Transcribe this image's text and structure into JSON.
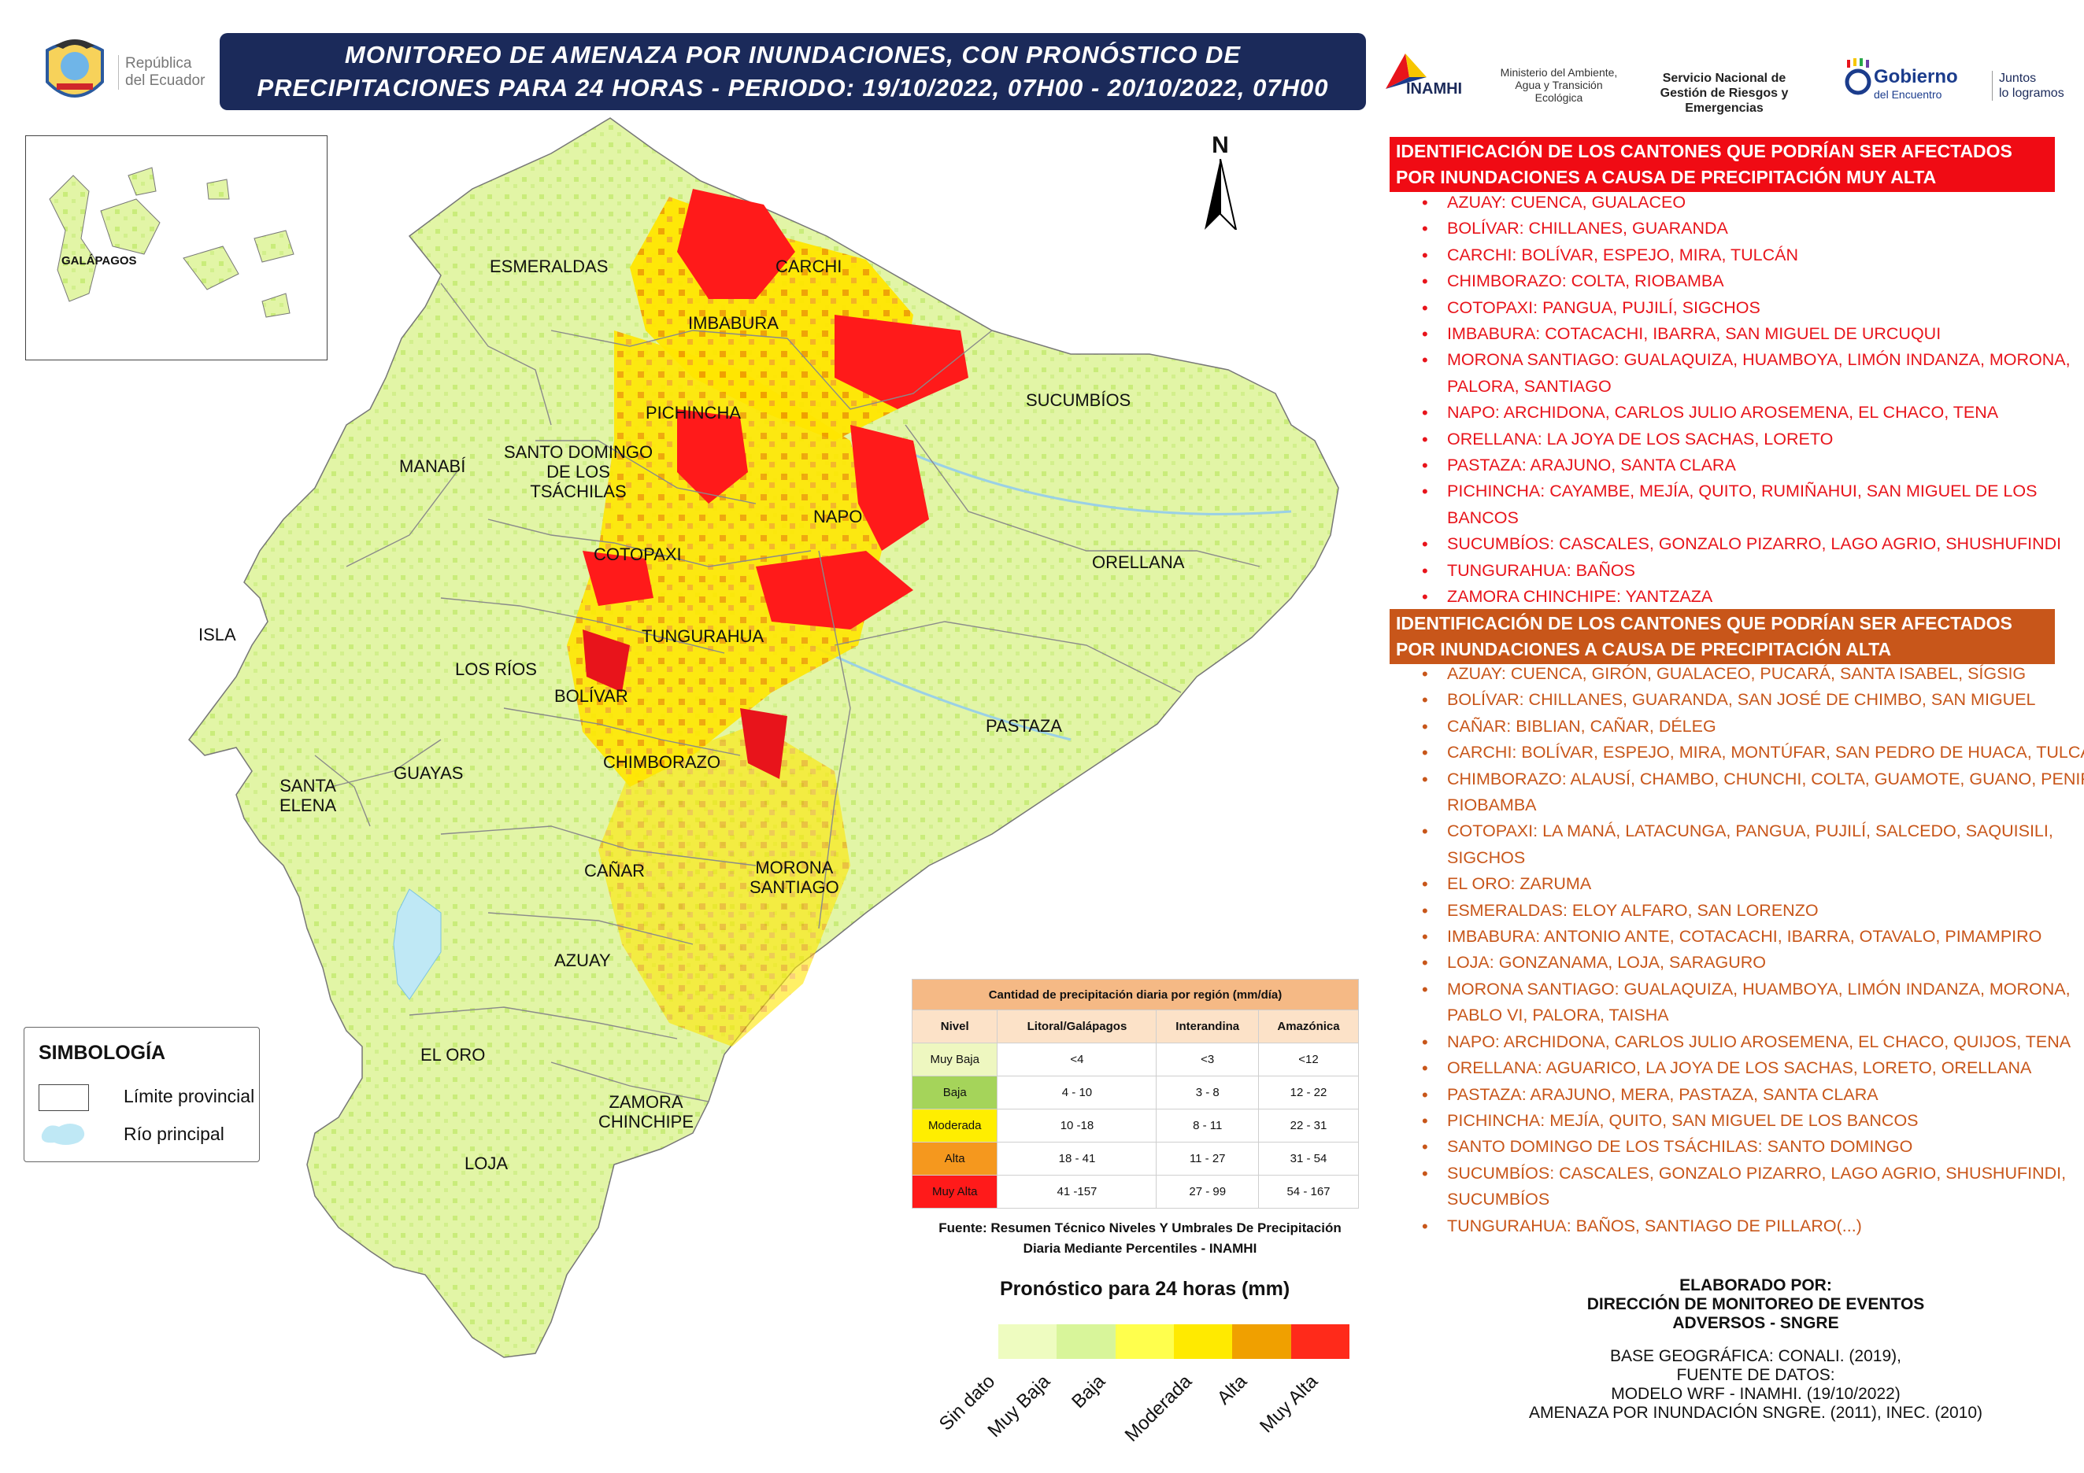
{
  "header": {
    "title_line1": "MONITOREO DE AMENAZA POR INUNDACIONES, CON PRONÓSTICO DE",
    "title_line2": "PRECIPITACIONES  PARA 24  HORAS - PERIODO: 19/10/2022, 07H00 - 20/10/2022, 07H00"
  },
  "logos": {
    "republica": "República\ndel Ecuador",
    "inamhi": "INAMHI",
    "ministerio": "Ministerio del Ambiente, Agua y Transición Ecológica",
    "sngre": "Servicio Nacional de Gestión de Riesgos y Emergencias",
    "gobierno": "Gobierno",
    "gobierno_sub": "del Encuentro",
    "juntos": "Juntos\nlo logramos"
  },
  "inset": {
    "label": "GALÁPAGOS"
  },
  "north": "N",
  "map_labels": [
    {
      "id": "esmeraldas",
      "text": "ESMERALDAS"
    },
    {
      "id": "carchi",
      "text": "CARCHI"
    },
    {
      "id": "imbabura",
      "text": "IMBABURA"
    },
    {
      "id": "sucumbios",
      "text": "SUCUMBÍOS"
    },
    {
      "id": "pichincha",
      "text": "PICHINCHA"
    },
    {
      "id": "manabi",
      "text": "MANABÍ"
    },
    {
      "id": "santo-domingo",
      "text": "SANTO DOMINGO\nDE LOS\nTSÁCHILAS"
    },
    {
      "id": "napo",
      "text": "NAPO"
    },
    {
      "id": "orellana",
      "text": "ORELLANA"
    },
    {
      "id": "cotopaxi",
      "text": "COTOPAXI"
    },
    {
      "id": "isla",
      "text": "ISLA"
    },
    {
      "id": "tungurahua",
      "text": "TUNGURAHUA"
    },
    {
      "id": "los-rios",
      "text": "LOS RÍOS"
    },
    {
      "id": "bolivar",
      "text": "BOLÍVAR"
    },
    {
      "id": "pastaza",
      "text": "PASTAZA"
    },
    {
      "id": "santa-elena",
      "text": "SANTA\nELENA"
    },
    {
      "id": "guayas",
      "text": "GUAYAS"
    },
    {
      "id": "chimborazo",
      "text": "CHIMBORAZO"
    },
    {
      "id": "canar",
      "text": "CAÑAR"
    },
    {
      "id": "morona",
      "text": "MORONA\nSANTIAGO"
    },
    {
      "id": "azuay",
      "text": "AZUAY"
    },
    {
      "id": "el-oro",
      "text": "EL ORO"
    },
    {
      "id": "zamora",
      "text": "ZAMORA\nCHINCHIPE"
    },
    {
      "id": "loja",
      "text": "LOJA"
    }
  ],
  "muy_alta": {
    "title": "IDENTIFICACIÓN DE LOS CANTONES QUE PODRÍAN SER AFECTADOS POR INUNDACIONES A CAUSA DE  PRECIPITACIÓN MUY ALTA",
    "color": "#e8141b",
    "items": [
      "AZUAY: CUENCA, GUALACEO",
      "BOLÍVAR: CHILLANES, GUARANDA",
      "CARCHI: BOLÍVAR, ESPEJO, MIRA, TULCÁN",
      "CHIMBORAZO: COLTA, RIOBAMBA",
      "COTOPAXI: PANGUA, PUJILÍ, SIGCHOS",
      "IMBABURA: COTACACHI, IBARRA, SAN MIGUEL DE URCUQUI",
      "MORONA SANTIAGO: GUALAQUIZA, HUAMBOYA, LIMÓN INDANZA, MORONA, PALORA, SANTIAGO",
      "NAPO: ARCHIDONA, CARLOS JULIO AROSEMENA, EL CHACO, TENA",
      "ORELLANA: LA JOYA DE LOS SACHAS, LORETO",
      "PASTAZA: ARAJUNO, SANTA CLARA",
      "PICHINCHA: CAYAMBE, MEJÍA, QUITO, RUMIÑAHUI, SAN MIGUEL DE LOS BANCOS",
      "SUCUMBÍOS: CASCALES, GONZALO PIZARRO, LAGO AGRIO, SHUSHUFINDI",
      "TUNGURAHUA: BAÑOS",
      "ZAMORA CHINCHIPE: YANTZAZA"
    ]
  },
  "alta": {
    "title": "IDENTIFICACIÓN DE LOS CANTONES QUE PODRÍAN SER AFECTADOS POR INUNDACIONES A CAUSA DE  PRECIPITACIÓN  ALTA",
    "color": "#c8561a",
    "items": [
      "AZUAY: CUENCA, GIRÓN, GUALACEO, PUCARÁ, SANTA ISABEL, SÍGSIG",
      "BOLÍVAR: CHILLANES, GUARANDA, SAN JOSÉ DE CHIMBO, SAN MIGUEL",
      "CAÑAR: BIBLIAN, CAÑAR, DÉLEG",
      "CARCHI: BOLÍVAR, ESPEJO, MIRA, MONTÚFAR, SAN PEDRO DE HUACA, TULCÁN",
      "CHIMBORAZO: ALAUSÍ, CHAMBO, CHUNCHI, COLTA, GUAMOTE, GUANO, PENIPE, RIOBAMBA",
      "COTOPAXI: LA MANÁ, LATACUNGA, PANGUA, PUJILÍ, SALCEDO, SAQUISILI, SIGCHOS",
      "EL ORO: ZARUMA",
      "ESMERALDAS: ELOY ALFARO, SAN LORENZO",
      "IMBABURA: ANTONIO ANTE, COTACACHI, IBARRA, OTAVALO, PIMAMPIRO",
      "LOJA: GONZANAMA, LOJA, SARAGURO",
      "MORONA SANTIAGO: GUALAQUIZA, HUAMBOYA, LIMÓN INDANZA, MORONA, PABLO VI, PALORA, TAISHA",
      "NAPO: ARCHIDONA, CARLOS JULIO AROSEMENA, EL CHACO, QUIJOS, TENA",
      "ORELLANA: AGUARICO, LA JOYA DE LOS SACHAS, LORETO, ORELLANA",
      "PASTAZA: ARAJUNO, MERA, PASTAZA, SANTA CLARA",
      "PICHINCHA: MEJÍA, QUITO, SAN MIGUEL DE LOS BANCOS",
      "SANTO DOMINGO DE LOS TSÁCHILAS: SANTO DOMINGO",
      "SUCUMBÍOS: CASCALES, GONZALO PIZARRO, LAGO AGRIO, SHUSHUFINDI, SUCUMBÍOS",
      "TUNGURAHUA: BAÑOS, SANTIAGO DE PILLARO(...)"
    ]
  },
  "simbologia": {
    "title": "SIMBOLOGÍA",
    "limite": "Límite provincial",
    "rio": "Río principal"
  },
  "table": {
    "title": "Cantidad de precipitación diaria por región (mm/día)",
    "headers": [
      "Nivel",
      "Litoral/Galápagos",
      "Interandina",
      "Amazónica"
    ],
    "rows": [
      {
        "nivel": "Muy Baja",
        "color": "#eef7c0",
        "litoral": "<4",
        "interandina": "<3",
        "amazonica": "<12"
      },
      {
        "nivel": "Baja",
        "color": "#a5d45a",
        "litoral": "4 - 10",
        "interandina": "3 - 8",
        "amazonica": "12 - 22"
      },
      {
        "nivel": "Moderada",
        "color": "#ffee00",
        "litoral": "10 -18",
        "interandina": "8 - 11",
        "amazonica": "22 - 31"
      },
      {
        "nivel": "Alta",
        "color": "#f5981e",
        "litoral": "18 - 41",
        "interandina": "11 - 27",
        "amazonica": "31 - 54"
      },
      {
        "nivel": "Muy Alta",
        "color": "#ff1a1a",
        "litoral": "41 -157",
        "interandina": "27 - 99",
        "amazonica": "54 - 167"
      }
    ],
    "source": "Fuente: Resumen Técnico Niveles Y Umbrales De Precipitación Diaria Mediante Percentiles - INAMHI"
  },
  "legend": {
    "title": "Pronóstico para 24 horas (mm)",
    "items": [
      {
        "label": "Sin dato",
        "color": "#eefcc0"
      },
      {
        "label": "Muy Baja",
        "color": "#d8f59a"
      },
      {
        "label": "Baja",
        "color": "#ffff4d"
      },
      {
        "label": "Moderada",
        "color": "#ffea00"
      },
      {
        "label": "Alta",
        "color": "#f0a000"
      },
      {
        "label": "Muy Alta",
        "color": "#ff2a1a"
      }
    ]
  },
  "credits": {
    "head": "ELABORADO POR:\nDIRECCIÓN DE MONITOREO DE EVENTOS\nADVERSOS - SNGRE",
    "body": "BASE GEOGRÁFICA: CONALI. (2019),\nFUENTE DE DATOS:\nMODELO WRF - INAMHI. (19/10/2022)\nAMENAZA POR INUNDACIÓN SNGRE. (2011), INEC. (2010)"
  }
}
